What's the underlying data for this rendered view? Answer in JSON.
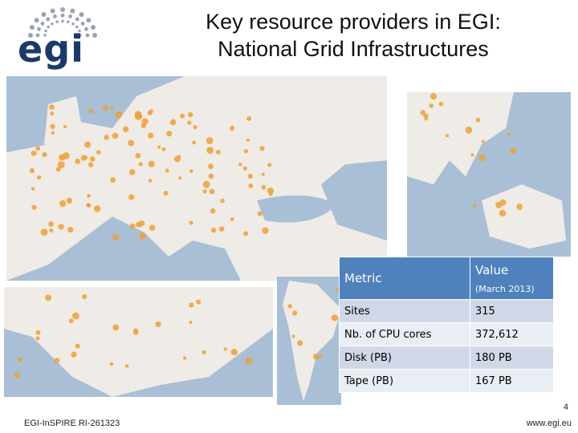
{
  "header": {
    "logo_text": "egi",
    "title_lines": [
      "Key resource providers in EGI:",
      "National Grid Infrastructures"
    ]
  },
  "table": {
    "header": {
      "metric": "Metric",
      "value": "Value",
      "value_note": "(March 2013)"
    },
    "rows": [
      [
        "Sites",
        "315"
      ],
      [
        "Nb. of CPU cores",
        "372,612"
      ],
      [
        "Disk (PB)",
        "180 PB"
      ],
      [
        "Tape (PB)",
        "167 PB"
      ]
    ]
  },
  "footer": {
    "project": "EGI-InSPIRE RI-261323",
    "page": "4",
    "url": "www.egi.eu"
  }
}
